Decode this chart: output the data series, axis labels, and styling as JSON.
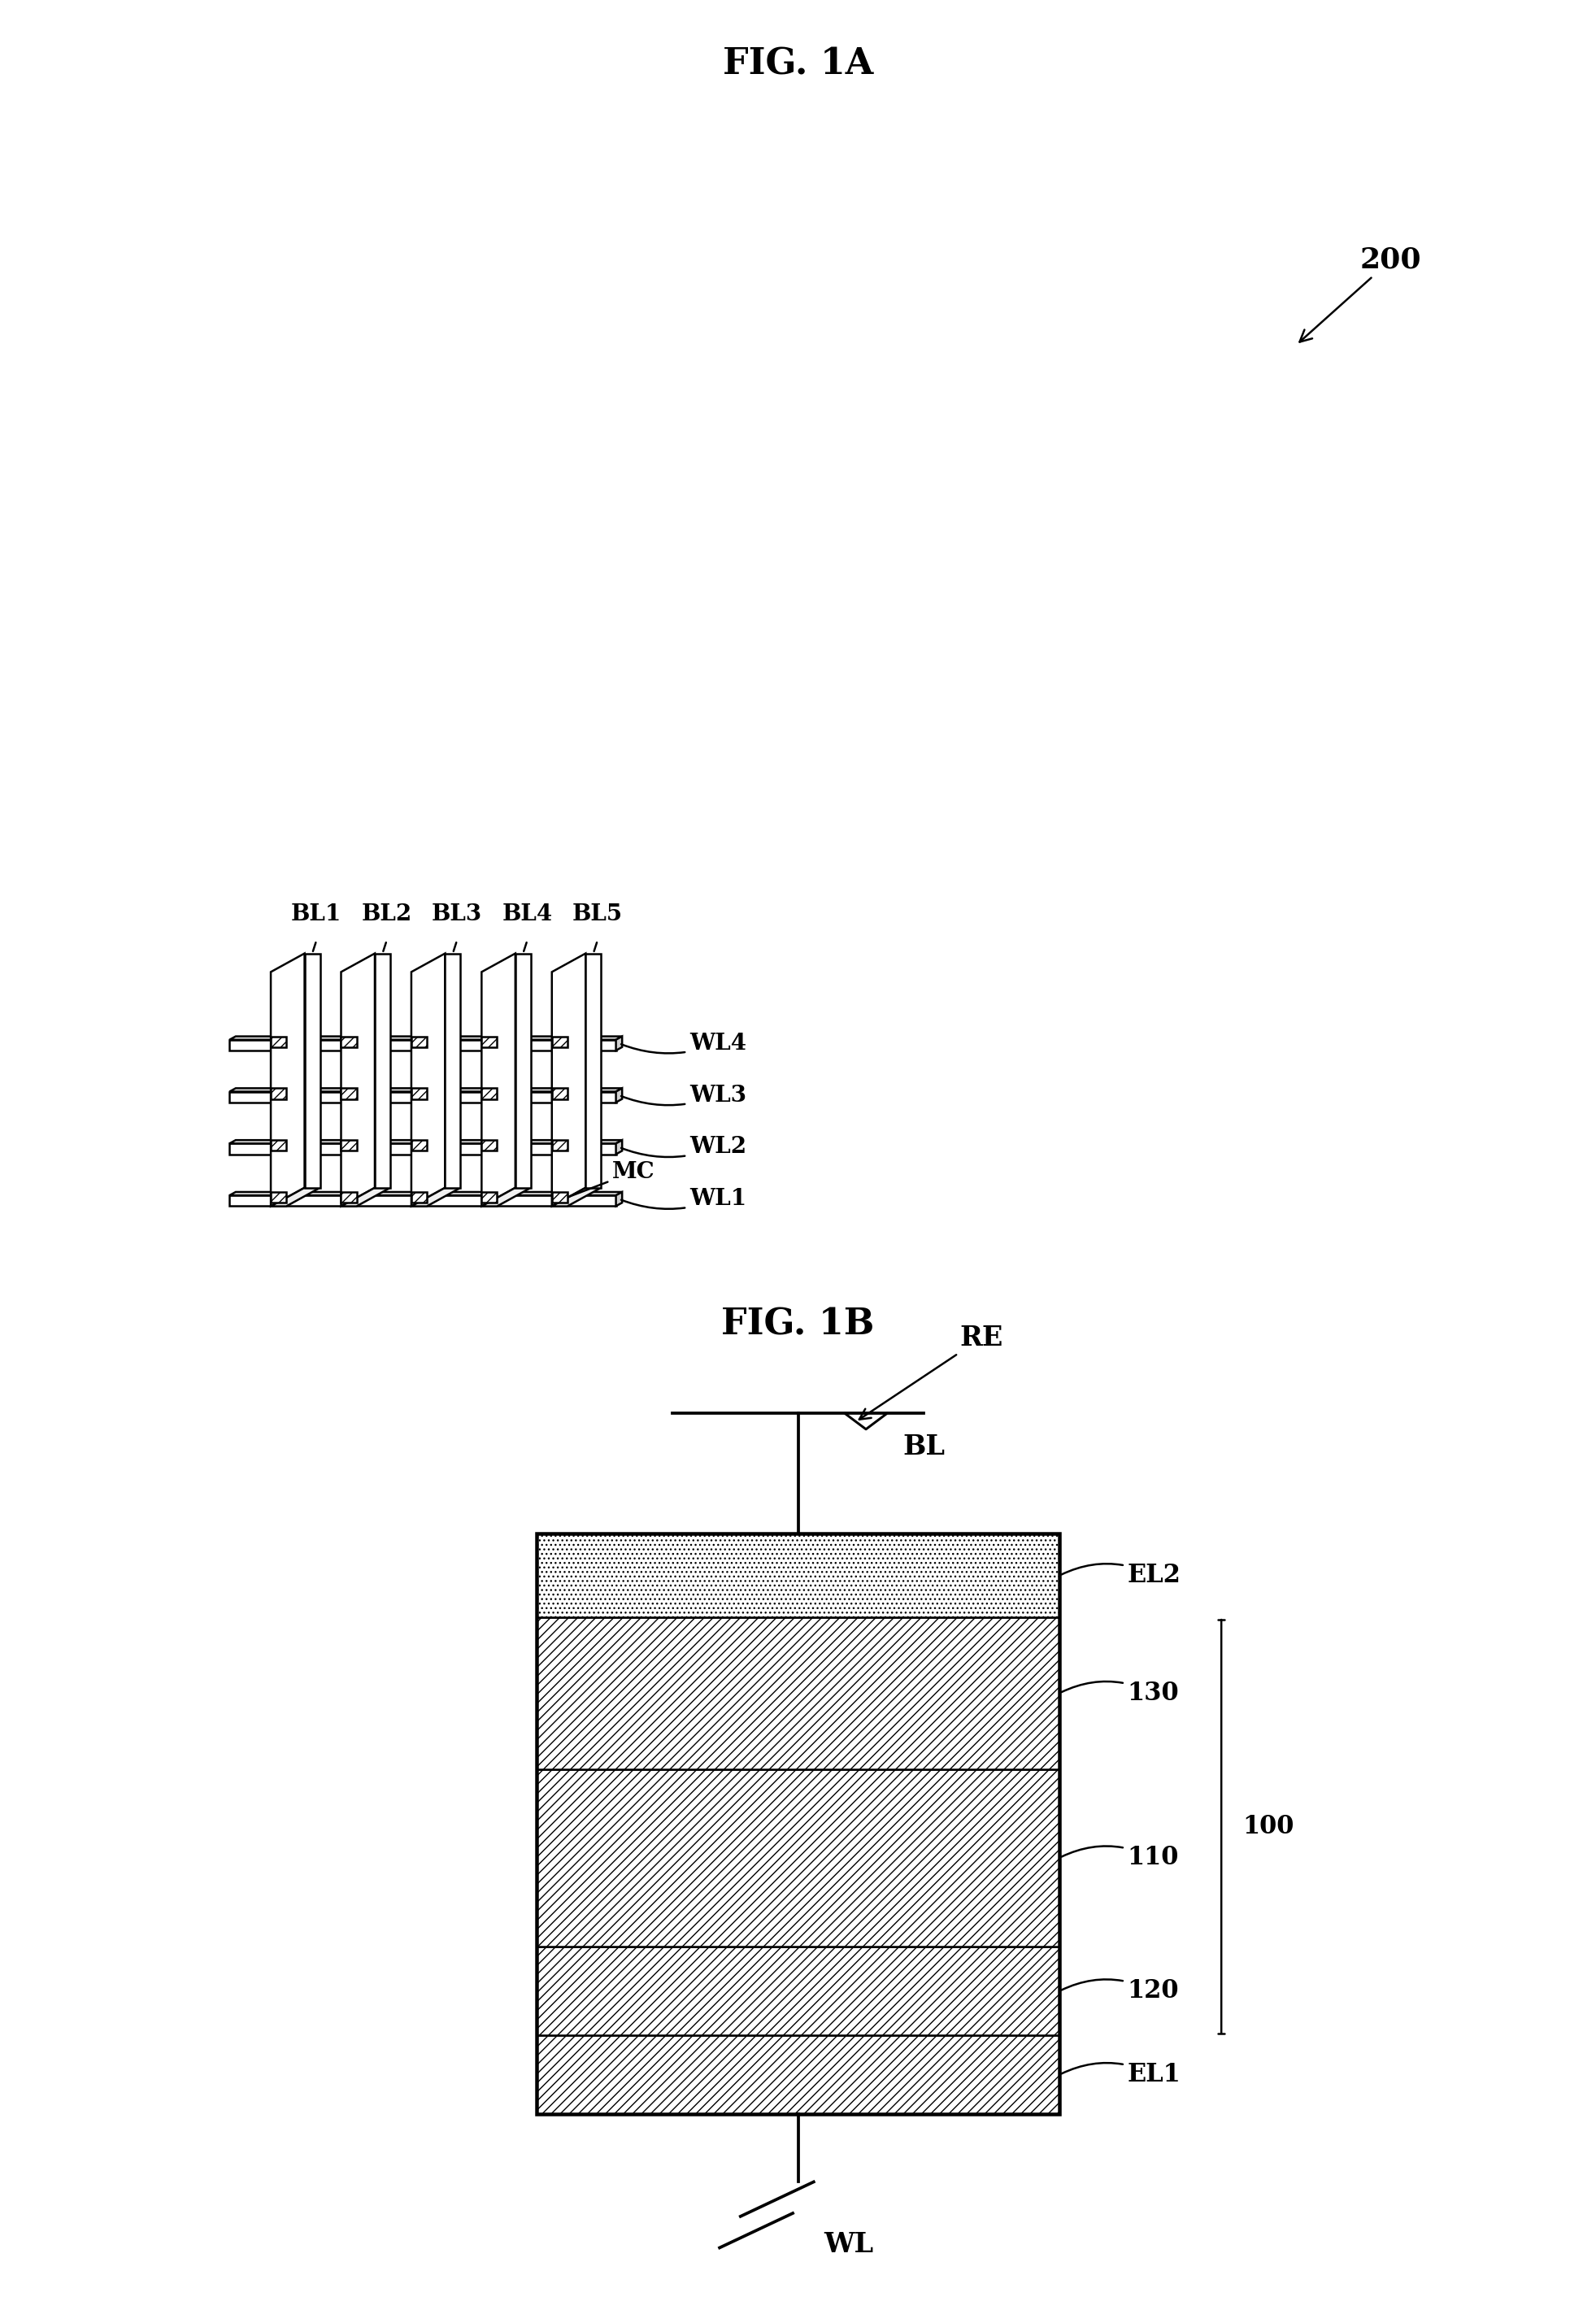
{
  "fig_title_1a": "FIG. 1A",
  "fig_title_1b": "FIG. 1B",
  "bg_color": "#ffffff",
  "line_color": "#000000",
  "bl_labels": [
    "BL1",
    "BL2",
    "BL3",
    "BL4",
    "BL5"
  ],
  "wl_labels": [
    "WL1",
    "WL2",
    "WL3",
    "WL4"
  ],
  "label_200": "200",
  "label_MC": "MC",
  "label_100": "100",
  "label_BL": "BL",
  "label_WL": "WL",
  "label_RE": "RE"
}
